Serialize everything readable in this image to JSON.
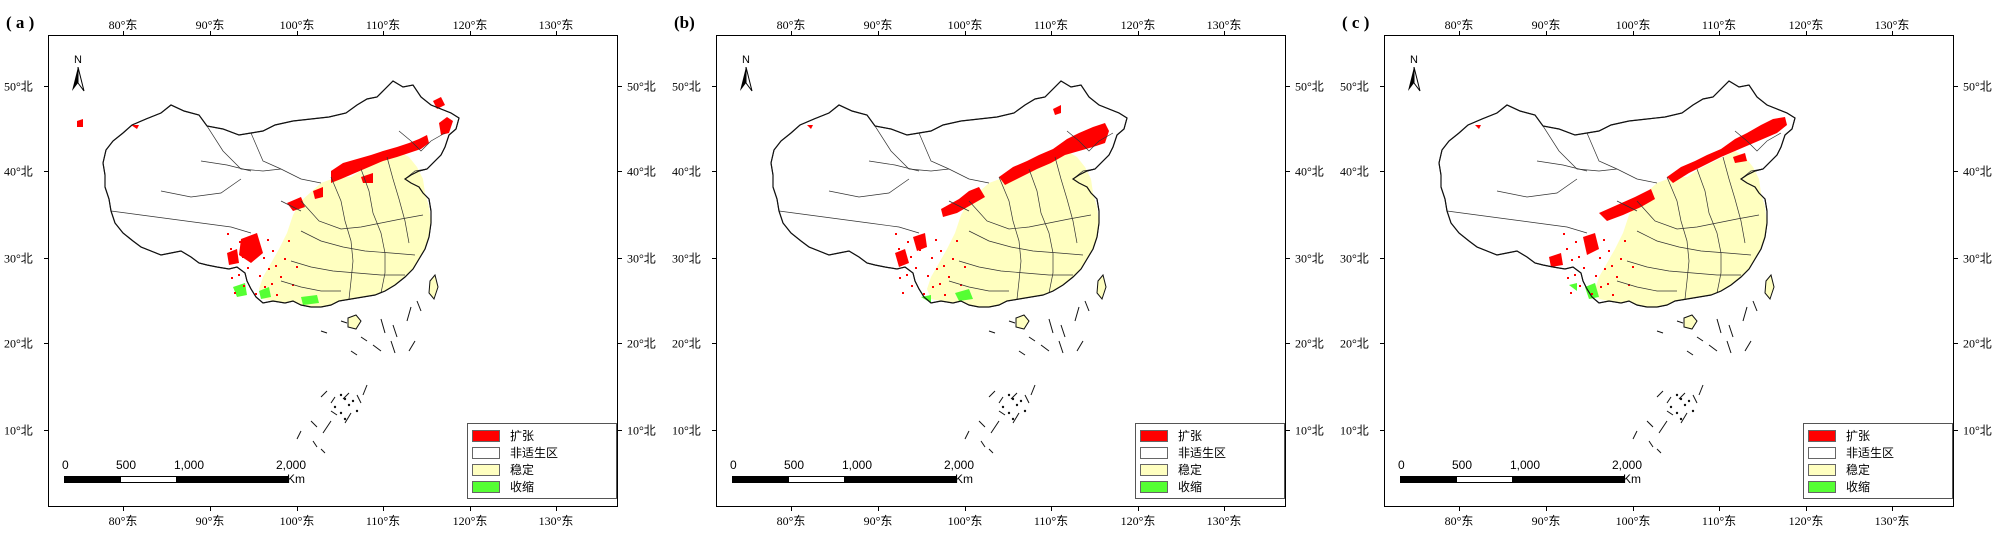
{
  "panels": [
    {
      "label": "( a )"
    },
    {
      "label": "(b)"
    },
    {
      "label": "( c )"
    }
  ],
  "axes": {
    "longitude_ticks": [
      "80°东",
      "90°东",
      "100°东",
      "110°东",
      "120°东",
      "130°东"
    ],
    "latitude_ticks": [
      "50°北",
      "40°北",
      "30°北",
      "20°北",
      "10°北"
    ]
  },
  "north_arrow": {
    "label": "N"
  },
  "legend": {
    "items": [
      {
        "label": "扩张",
        "color": "#ff0000"
      },
      {
        "label": "非适生区",
        "color": "#ffffff"
      },
      {
        "label": "稳定",
        "color": "#ffffc0"
      },
      {
        "label": "收缩",
        "color": "#55ff33"
      }
    ]
  },
  "scale_bar": {
    "labels": [
      "0",
      "500",
      "1,000",
      "2,000"
    ],
    "unit": "Km"
  }
}
